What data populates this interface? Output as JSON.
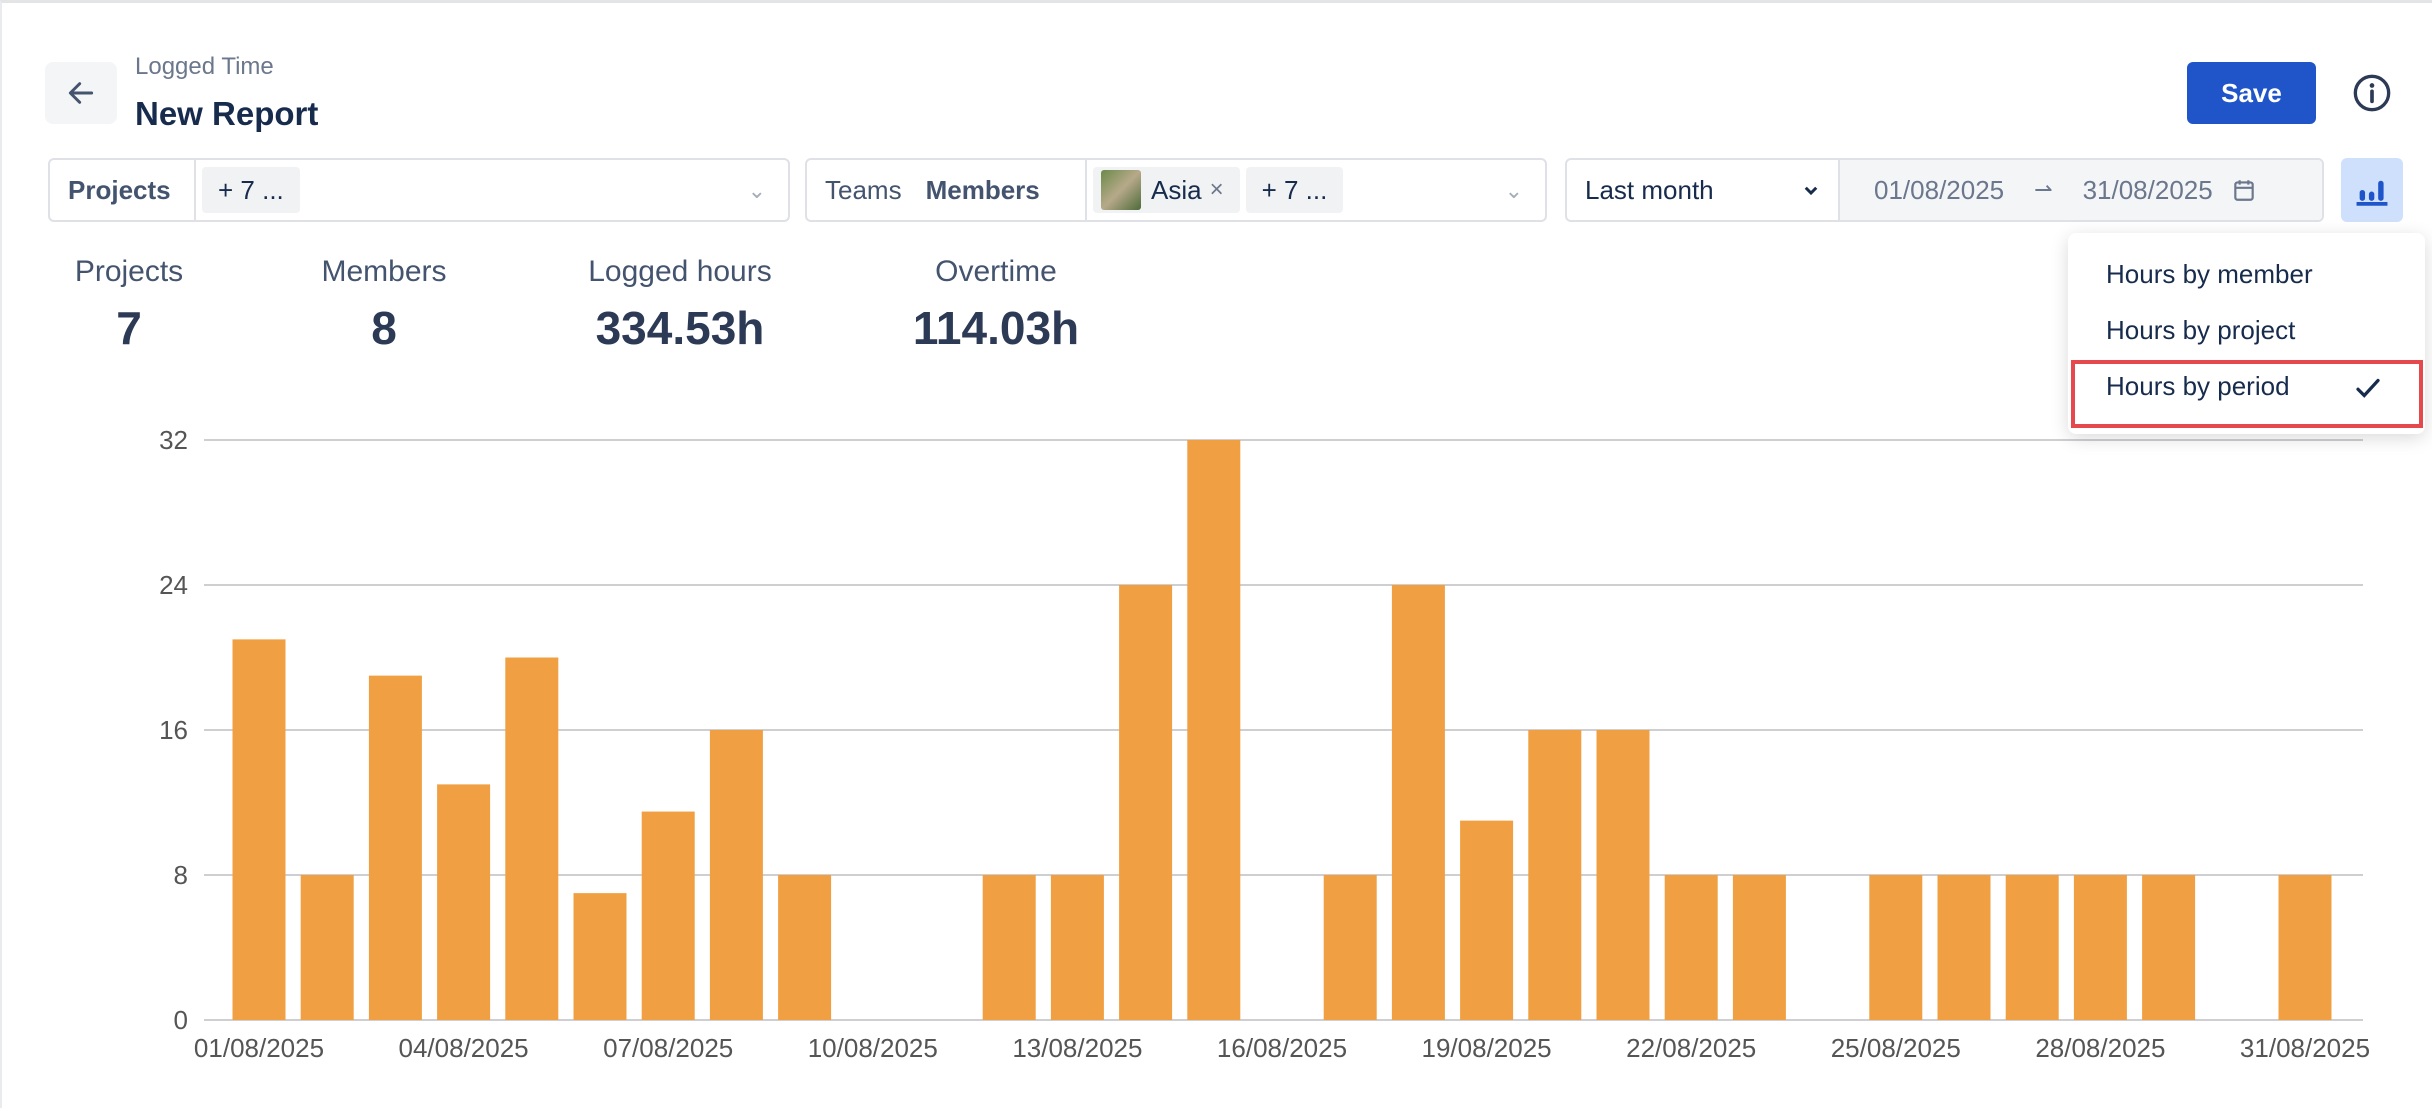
{
  "header": {
    "breadcrumb": "Logged Time",
    "title": "New Report",
    "save_label": "Save"
  },
  "filters": {
    "projects": {
      "label": "Projects",
      "chip": "+ 7 ..."
    },
    "members": {
      "teams_label": "Teams",
      "members_label": "Members",
      "chip_name": "Asia",
      "more_chip": "+ 7 ..."
    },
    "date": {
      "preset": "Last month",
      "start": "01/08/2025",
      "end": "31/08/2025"
    }
  },
  "stats": [
    {
      "label": "Projects",
      "value": "7"
    },
    {
      "label": "Members",
      "value": "8"
    },
    {
      "label": "Logged hours",
      "value": "334.53h"
    },
    {
      "label": "Overtime",
      "value": "114.03h"
    }
  ],
  "chart_menu": {
    "items": [
      "Hours by member",
      "Hours by project",
      "Hours by period"
    ],
    "selected": "Hours by period"
  },
  "colors": {
    "bar": "#f0a042",
    "accent": "#1f55c9",
    "highlight": "#e5484d"
  },
  "chart_data": {
    "type": "bar",
    "categories": [
      "01/08/2025",
      "02/08/2025",
      "03/08/2025",
      "04/08/2025",
      "05/08/2025",
      "06/08/2025",
      "07/08/2025",
      "08/08/2025",
      "09/08/2025",
      "10/08/2025",
      "11/08/2025",
      "12/08/2025",
      "13/08/2025",
      "14/08/2025",
      "15/08/2025",
      "16/08/2025",
      "17/08/2025",
      "18/08/2025",
      "19/08/2025",
      "20/08/2025",
      "21/08/2025",
      "22/08/2025",
      "23/08/2025",
      "24/08/2025",
      "25/08/2025",
      "26/08/2025",
      "27/08/2025",
      "28/08/2025",
      "29/08/2025",
      "30/08/2025",
      "31/08/2025"
    ],
    "values": [
      21,
      8,
      19,
      13,
      20,
      7,
      11.5,
      16,
      8,
      0,
      0,
      8,
      8,
      24,
      32,
      0,
      8,
      24,
      11,
      16,
      16,
      8,
      8,
      0,
      8,
      8,
      8,
      8,
      8,
      0,
      8
    ],
    "x_tick_labels": [
      "01/08/2025",
      "04/08/2025",
      "07/08/2025",
      "10/08/2025",
      "13/08/2025",
      "16/08/2025",
      "19/08/2025",
      "22/08/2025",
      "25/08/2025",
      "28/08/2025",
      "31/08/2025"
    ],
    "y_ticks": [
      0,
      8,
      16,
      24,
      32
    ],
    "ylim": [
      0,
      32
    ],
    "grid": true
  }
}
